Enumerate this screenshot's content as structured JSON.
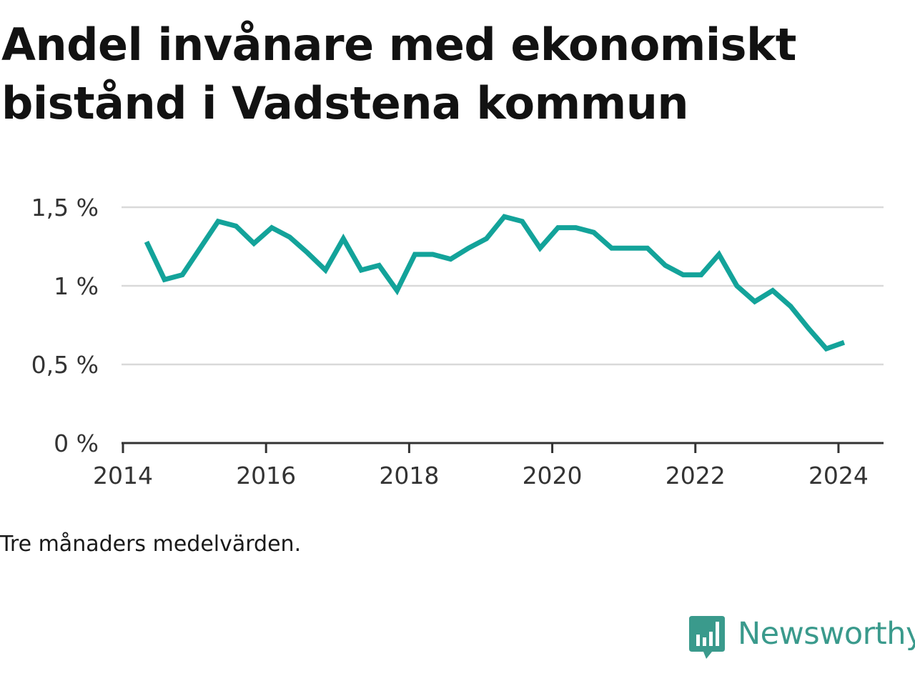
{
  "title": "Andel invånare med ekonomiskt bistånd i Vadstena kommun",
  "note": "Tre månaders medelvärden.",
  "brand": {
    "name": "Newsworthy",
    "color": "#3a9a8c",
    "icon": "bar-chart-speech-bubble-icon"
  },
  "chart_data": {
    "type": "line",
    "title": "Andel invånare med ekonomiskt bistånd i Vadstena kommun",
    "xlabel": "",
    "ylabel": "",
    "xlim": [
      2013.98,
      2024.63
    ],
    "ylim": [
      0,
      1.5
    ],
    "x_ticks": [
      {
        "value": 2014,
        "label": "2014"
      },
      {
        "value": 2016,
        "label": "2016"
      },
      {
        "value": 2018,
        "label": "2018"
      },
      {
        "value": 2020,
        "label": "2020"
      },
      {
        "value": 2022,
        "label": "2022"
      },
      {
        "value": 2024,
        "label": "2024"
      }
    ],
    "y_ticks": [
      {
        "value": 0,
        "label": "0 %"
      },
      {
        "value": 0.5,
        "label": "0,5 %"
      },
      {
        "value": 1,
        "label": "1 %"
      },
      {
        "value": 1.5,
        "label": "1,5 %"
      }
    ],
    "grid": true,
    "line_color": "#13a39a",
    "series": [
      {
        "x": [
          2014.33,
          2014.58,
          2014.83,
          2015.08,
          2015.33,
          2015.58,
          2015.83,
          2016.08,
          2016.33,
          2016.58,
          2016.83,
          2017.08,
          2017.33,
          2017.58,
          2017.83,
          2018.08,
          2018.33,
          2018.58,
          2018.83,
          2019.08,
          2019.33,
          2019.58,
          2019.83,
          2020.08,
          2020.33,
          2020.58,
          2020.83,
          2021.08,
          2021.33,
          2021.58,
          2021.83,
          2022.08,
          2022.33,
          2022.58,
          2022.83,
          2023.08,
          2023.33,
          2023.58,
          2023.83,
          2024.08
        ],
        "values": [
          1.28,
          1.04,
          1.07,
          1.24,
          1.41,
          1.38,
          1.27,
          1.37,
          1.31,
          1.21,
          1.1,
          1.3,
          1.1,
          1.13,
          0.97,
          1.2,
          1.2,
          1.17,
          1.24,
          1.3,
          1.44,
          1.41,
          1.24,
          1.37,
          1.37,
          1.34,
          1.24,
          1.24,
          1.24,
          1.13,
          1.07,
          1.07,
          1.2,
          1.0,
          0.9,
          0.97,
          0.87,
          0.73,
          0.6,
          0.64
        ]
      }
    ]
  }
}
